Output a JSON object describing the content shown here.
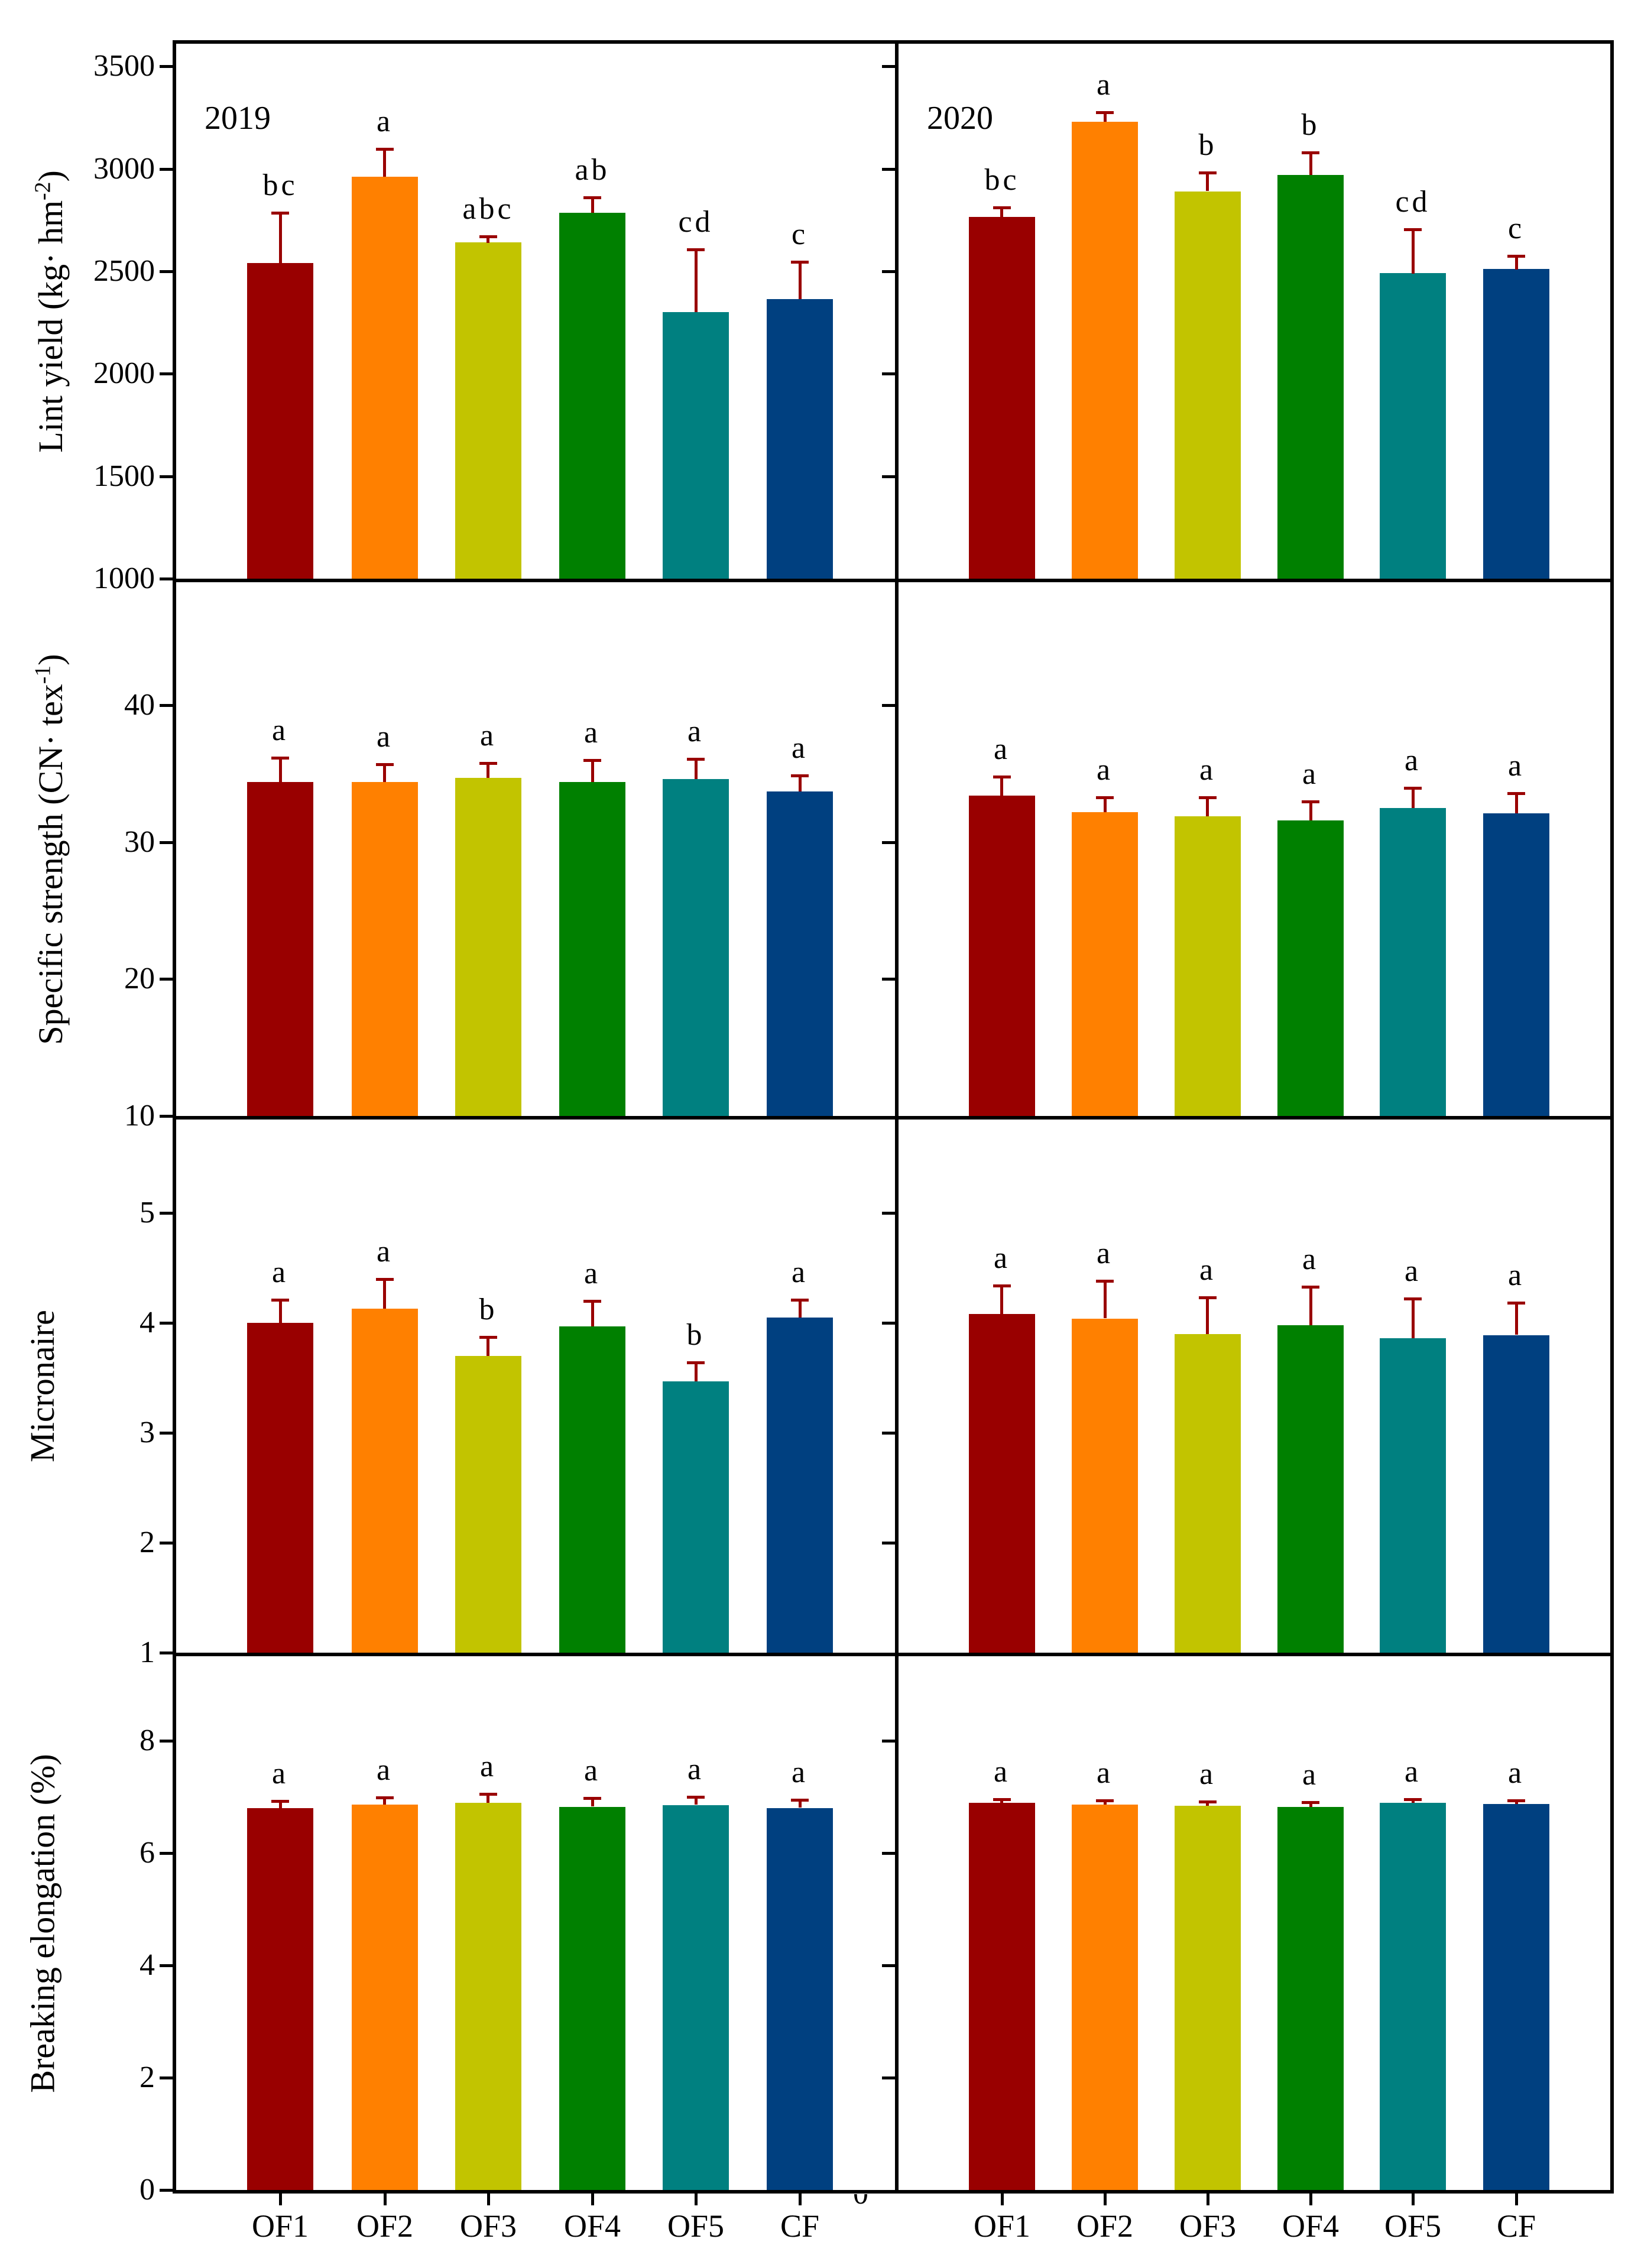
{
  "chart_data": {
    "type": "bar",
    "categories": [
      "OF1",
      "OF2",
      "OF3",
      "OF4",
      "OF5",
      "CF"
    ],
    "bar_colors": [
      "#990000",
      "#FF8000",
      "#C2C400",
      "#008000",
      "#008080",
      "#004080"
    ],
    "error_bar_color": "#990000",
    "legend_position": "none",
    "grid": false,
    "x_tick_labels": [
      "OF1",
      "OF2",
      "OF3",
      "OF4",
      "OF5",
      "CF"
    ],
    "partial_bottom_label": "0",
    "rows": [
      {
        "measure": "Lint yield",
        "ylabel_pre": "Lint yield (kg· hm",
        "ylabel_sup": "-2",
        "ylabel_post": ")",
        "ylim": [
          1000,
          3610
        ],
        "yticks": [
          1000,
          1500,
          2000,
          2500,
          3000,
          3500
        ],
        "panels": [
          {
            "year_label": "2019",
            "values": [
              2540,
              2960,
              2640,
              2785,
              2300,
              2365
            ],
            "errors": [
              240,
              130,
              25,
              70,
              300,
              175
            ],
            "letters": [
              "bc",
              "a",
              "abc",
              "ab",
              "cd",
              "c"
            ]
          },
          {
            "year_label": "2020",
            "values": [
              2765,
              3230,
              2890,
              2970,
              2490,
              2510
            ],
            "errors": [
              40,
              40,
              85,
              105,
              210,
              60
            ],
            "letters": [
              "bc",
              "a",
              "b",
              "b",
              "cd",
              "c"
            ]
          }
        ]
      },
      {
        "measure": "Specific strength",
        "ylabel_pre": "Specific strength (CN· tex",
        "ylabel_sup": "-1",
        "ylabel_post": ")",
        "ylim": [
          10,
          49
        ],
        "yticks": [
          10,
          20,
          30,
          40
        ],
        "panels": [
          {
            "year_label": "",
            "values": [
              34.4,
              34.4,
              34.7,
              34.4,
              34.6,
              33.7
            ],
            "errors": [
              1.7,
              1.2,
              1.0,
              1.5,
              1.4,
              1.1
            ],
            "letters": [
              "a",
              "a",
              "a",
              "a",
              "a",
              "a"
            ]
          },
          {
            "year_label": "",
            "values": [
              33.4,
              32.2,
              31.9,
              31.6,
              32.5,
              32.1
            ],
            "errors": [
              1.3,
              1.0,
              1.3,
              1.3,
              1.4,
              1.4
            ],
            "letters": [
              "a",
              "a",
              "a",
              "a",
              "a",
              "a"
            ]
          }
        ]
      },
      {
        "measure": "Micronaire",
        "ylabel_pre": "Micronaire",
        "ylabel_sup": "",
        "ylabel_post": "",
        "ylim": [
          1,
          5.85
        ],
        "yticks": [
          1,
          2,
          3,
          4,
          5
        ],
        "panels": [
          {
            "year_label": "",
            "values": [
              4.0,
              4.13,
              3.7,
              3.97,
              3.47,
              4.05
            ],
            "errors": [
              0.2,
              0.26,
              0.16,
              0.22,
              0.16,
              0.15
            ],
            "letters": [
              "a",
              "a",
              "b",
              "a",
              "b",
              "a"
            ]
          },
          {
            "year_label": "",
            "values": [
              4.08,
              4.04,
              3.9,
              3.98,
              3.86,
              3.89
            ],
            "errors": [
              0.25,
              0.33,
              0.32,
              0.34,
              0.35,
              0.28
            ],
            "letters": [
              "a",
              "a",
              "a",
              "a",
              "a",
              "a"
            ]
          }
        ]
      },
      {
        "measure": "Breaking elongation",
        "ylabel_pre": "Breaking elongation (%)",
        "ylabel_sup": "",
        "ylabel_post": "",
        "ylim": [
          0,
          9.5
        ],
        "yticks": [
          0,
          2,
          4,
          6,
          8
        ],
        "panels": [
          {
            "year_label": "",
            "values": [
              6.8,
              6.86,
              6.89,
              6.82,
              6.85,
              6.8
            ],
            "errors": [
              0.1,
              0.1,
              0.14,
              0.13,
              0.12,
              0.12
            ],
            "letters": [
              "a",
              "a",
              "a",
              "a",
              "a",
              "a"
            ]
          },
          {
            "year_label": "",
            "values": [
              6.89,
              6.86,
              6.84,
              6.82,
              6.89,
              6.87
            ],
            "errors": [
              0.04,
              0.05,
              0.05,
              0.06,
              0.04,
              0.04
            ],
            "letters": [
              "a",
              "a",
              "a",
              "a",
              "a",
              "a"
            ]
          }
        ]
      }
    ]
  }
}
